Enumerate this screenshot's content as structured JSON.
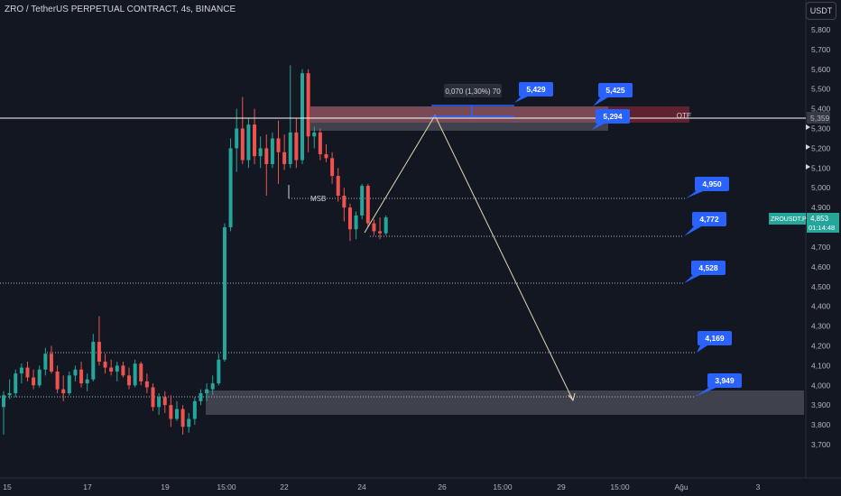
{
  "header": {
    "title": "ZRO / TetherUS PERPETUAL CONTRACT, 4s, BINANCE",
    "currency": "USDT"
  },
  "colors": {
    "background": "#131722",
    "up": "#26a69a",
    "down": "#ef5350",
    "label_blue": "#2962ff",
    "axis_text": "#b2b5be"
  },
  "chart_data": {
    "type": "candlestick",
    "x_ticks": [
      "15",
      "17",
      "19",
      "15:00",
      "22",
      "24",
      "26",
      "15:00",
      "29",
      "15:00",
      "Ağu",
      "3"
    ],
    "y_ticks": [
      "5,800",
      "5,700",
      "5,600",
      "5,500",
      "5,400",
      "5,300",
      "5,200",
      "5,100",
      "5,000",
      "4,900",
      "4,800",
      "4,700",
      "4,600",
      "4,500",
      "4,400",
      "4,300",
      "4,200",
      "4,100",
      "4,000",
      "3,900",
      "3,800",
      "3,700"
    ],
    "ylim": [
      3.64,
      5.94
    ],
    "current_price": {
      "symbol": "ZROUSDT.P",
      "price": "4,853",
      "countdown": "01:14:48"
    },
    "crosshair_price": "5,359",
    "candles": [
      {
        "o": 3.89,
        "h": 3.97,
        "l": 3.75,
        "c": 3.95
      },
      {
        "o": 3.95,
        "h": 4.03,
        "l": 3.93,
        "c": 3.96
      },
      {
        "o": 3.96,
        "h": 4.08,
        "l": 3.94,
        "c": 4.06
      },
      {
        "o": 4.06,
        "h": 4.11,
        "l": 4.01,
        "c": 4.09
      },
      {
        "o": 4.09,
        "h": 4.12,
        "l": 4.02,
        "c": 4.04
      },
      {
        "o": 4.04,
        "h": 4.08,
        "l": 3.98,
        "c": 4.0
      },
      {
        "o": 4.0,
        "h": 4.1,
        "l": 3.99,
        "c": 4.08
      },
      {
        "o": 4.08,
        "h": 4.19,
        "l": 4.05,
        "c": 4.16
      },
      {
        "o": 4.16,
        "h": 4.2,
        "l": 4.06,
        "c": 4.07
      },
      {
        "o": 4.07,
        "h": 4.1,
        "l": 3.96,
        "c": 3.98
      },
      {
        "o": 3.98,
        "h": 4.05,
        "l": 3.92,
        "c": 3.96
      },
      {
        "o": 3.96,
        "h": 4.07,
        "l": 3.95,
        "c": 4.05
      },
      {
        "o": 4.05,
        "h": 4.1,
        "l": 4.02,
        "c": 4.08
      },
      {
        "o": 4.08,
        "h": 4.12,
        "l": 3.99,
        "c": 4.01
      },
      {
        "o": 4.01,
        "h": 4.06,
        "l": 3.97,
        "c": 4.03
      },
      {
        "o": 4.03,
        "h": 4.26,
        "l": 4.02,
        "c": 4.22
      },
      {
        "o": 4.22,
        "h": 4.35,
        "l": 4.1,
        "c": 4.12
      },
      {
        "o": 4.12,
        "h": 4.16,
        "l": 4.06,
        "c": 4.09
      },
      {
        "o": 4.09,
        "h": 4.13,
        "l": 4.05,
        "c": 4.07
      },
      {
        "o": 4.07,
        "h": 4.12,
        "l": 4.02,
        "c": 4.1
      },
      {
        "o": 4.1,
        "h": 4.12,
        "l": 4.04,
        "c": 4.05
      },
      {
        "o": 4.05,
        "h": 4.09,
        "l": 3.98,
        "c": 4.0
      },
      {
        "o": 4.0,
        "h": 4.13,
        "l": 3.99,
        "c": 4.11
      },
      {
        "o": 4.11,
        "h": 4.12,
        "l": 4.0,
        "c": 4.02
      },
      {
        "o": 4.02,
        "h": 4.06,
        "l": 3.96,
        "c": 3.99
      },
      {
        "o": 3.99,
        "h": 4.01,
        "l": 3.87,
        "c": 3.89
      },
      {
        "o": 3.89,
        "h": 3.96,
        "l": 3.85,
        "c": 3.94
      },
      {
        "o": 3.94,
        "h": 3.97,
        "l": 3.86,
        "c": 3.9
      },
      {
        "o": 3.9,
        "h": 3.95,
        "l": 3.79,
        "c": 3.83
      },
      {
        "o": 3.83,
        "h": 3.92,
        "l": 3.82,
        "c": 3.88
      },
      {
        "o": 3.88,
        "h": 3.9,
        "l": 3.75,
        "c": 3.79
      },
      {
        "o": 3.79,
        "h": 3.86,
        "l": 3.76,
        "c": 3.83
      },
      {
        "o": 3.83,
        "h": 3.94,
        "l": 3.8,
        "c": 3.92
      },
      {
        "o": 3.92,
        "h": 3.98,
        "l": 3.9,
        "c": 3.96
      },
      {
        "o": 3.96,
        "h": 4.01,
        "l": 3.92,
        "c": 3.98
      },
      {
        "o": 3.98,
        "h": 4.05,
        "l": 3.95,
        "c": 4.01
      },
      {
        "o": 4.01,
        "h": 4.16,
        "l": 4.0,
        "c": 4.13
      },
      {
        "o": 4.13,
        "h": 4.82,
        "l": 4.12,
        "c": 4.8
      },
      {
        "o": 4.8,
        "h": 5.25,
        "l": 4.78,
        "c": 5.2
      },
      {
        "o": 5.2,
        "h": 5.4,
        "l": 5.08,
        "c": 5.3
      },
      {
        "o": 5.3,
        "h": 5.46,
        "l": 5.12,
        "c": 5.14
      },
      {
        "o": 5.14,
        "h": 5.35,
        "l": 5.1,
        "c": 5.32
      },
      {
        "o": 5.32,
        "h": 5.4,
        "l": 5.12,
        "c": 5.16
      },
      {
        "o": 5.16,
        "h": 5.26,
        "l": 5.1,
        "c": 5.2
      },
      {
        "o": 5.2,
        "h": 5.27,
        "l": 4.96,
        "c": 5.12
      },
      {
        "o": 5.12,
        "h": 5.28,
        "l": 5.1,
        "c": 5.25
      },
      {
        "o": 5.25,
        "h": 5.34,
        "l": 5.02,
        "c": 5.18
      },
      {
        "o": 5.18,
        "h": 5.27,
        "l": 5.09,
        "c": 5.12
      },
      {
        "o": 5.12,
        "h": 5.62,
        "l": 5.1,
        "c": 5.28
      },
      {
        "o": 5.28,
        "h": 5.35,
        "l": 5.1,
        "c": 5.14
      },
      {
        "o": 5.14,
        "h": 5.6,
        "l": 5.12,
        "c": 5.58
      },
      {
        "o": 5.58,
        "h": 5.6,
        "l": 5.18,
        "c": 5.26
      },
      {
        "o": 5.26,
        "h": 5.31,
        "l": 5.2,
        "c": 5.28
      },
      {
        "o": 5.28,
        "h": 5.3,
        "l": 5.14,
        "c": 5.17
      },
      {
        "o": 5.17,
        "h": 5.22,
        "l": 5.13,
        "c": 5.15
      },
      {
        "o": 5.15,
        "h": 5.18,
        "l": 5.02,
        "c": 5.06
      },
      {
        "o": 5.06,
        "h": 5.1,
        "l": 4.93,
        "c": 4.96
      },
      {
        "o": 4.96,
        "h": 5.0,
        "l": 4.83,
        "c": 4.9
      },
      {
        "o": 4.9,
        "h": 4.92,
        "l": 4.73,
        "c": 4.79
      },
      {
        "o": 4.79,
        "h": 4.88,
        "l": 4.74,
        "c": 4.86
      },
      {
        "o": 4.86,
        "h": 5.02,
        "l": 4.84,
        "c": 5.01
      },
      {
        "o": 5.01,
        "h": 5.02,
        "l": 4.8,
        "c": 4.82
      },
      {
        "o": 4.82,
        "h": 4.84,
        "l": 4.76,
        "c": 4.78
      },
      {
        "o": 4.78,
        "h": 4.85,
        "l": 4.74,
        "c": 4.77
      },
      {
        "o": 4.77,
        "h": 4.86,
        "l": 4.76,
        "c": 4.85
      }
    ],
    "annotations": {
      "measure_label": "0,070 (1,30%) 70",
      "msb_label": "MSB",
      "ote_label": "OTE",
      "level_tags": [
        "5,429",
        "5,425",
        "5,294",
        "4,950",
        "4,772",
        "4,528",
        "4,169",
        "3,949"
      ]
    }
  }
}
